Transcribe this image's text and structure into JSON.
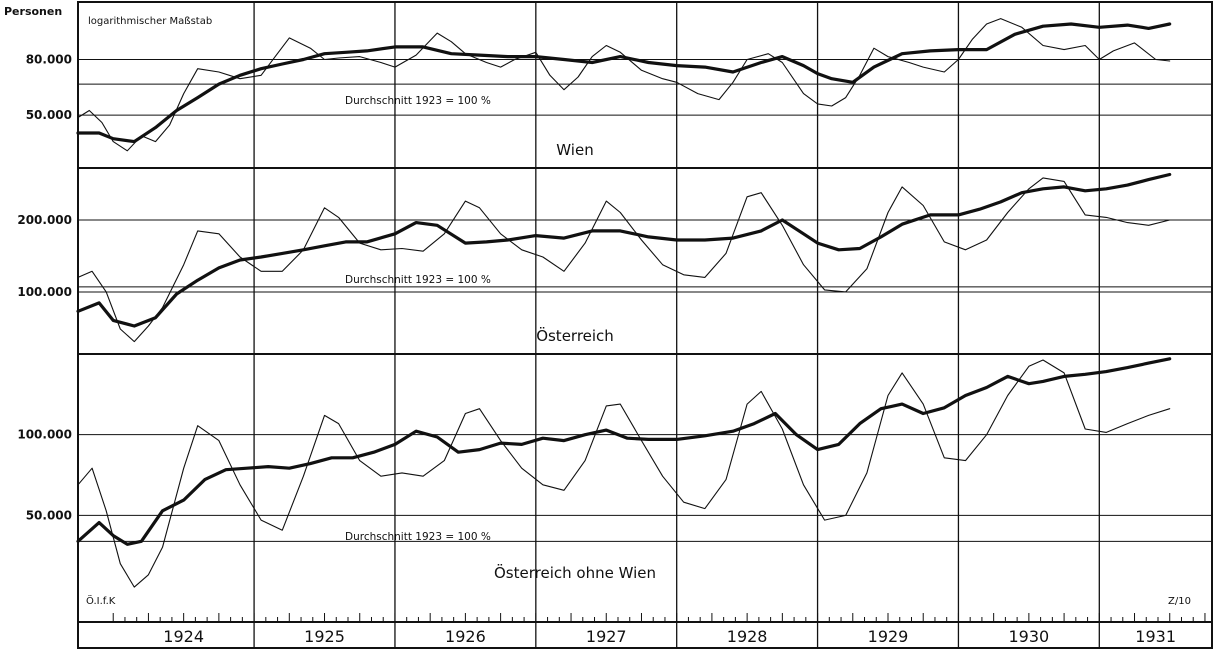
{
  "header": {
    "unit_label": "Personen",
    "scale_note": "logarithmischer Maßstab"
  },
  "footer": {
    "left_code": "Ö.I.f.K",
    "right_code": "Z/10"
  },
  "chart_data": [
    {
      "type": "line",
      "title": "Wien",
      "scale": "log",
      "reference_label": "Durchschnitt  1923 = 100 %",
      "ytick_labels": [
        "80.000",
        "50.000"
      ],
      "ytick_values": [
        80000,
        50000
      ],
      "ylim": [
        32000,
        130000
      ],
      "x_unit": "year (fractional)",
      "xlim": [
        1923.75,
        1931.8
      ],
      "reference_value": 65000,
      "series": [
        {
          "style": "thin",
          "x": [
            1923.75,
            1923.83,
            1923.92,
            1924.0,
            1924.1,
            1924.2,
            1924.3,
            1924.4,
            1924.5,
            1924.6,
            1924.75,
            1924.9,
            1925.05,
            1925.15,
            1925.25,
            1925.4,
            1925.5,
            1925.6,
            1925.75,
            1925.9,
            1926.0,
            1926.15,
            1926.3,
            1926.4,
            1926.5,
            1926.65,
            1926.75,
            1926.85,
            1927.0,
            1927.1,
            1927.2,
            1927.3,
            1927.4,
            1927.5,
            1927.6,
            1927.75,
            1927.9,
            1928.0,
            1928.15,
            1928.3,
            1928.4,
            1928.5,
            1928.65,
            1928.75,
            1928.9,
            1929.0,
            1929.1,
            1929.2,
            1929.3,
            1929.4,
            1929.5,
            1929.65,
            1929.75,
            1929.9,
            1930.0,
            1930.1,
            1930.2,
            1930.3,
            1930.45,
            1930.6,
            1930.75,
            1930.9,
            1931.0,
            1931.1,
            1931.25,
            1931.4,
            1931.5
          ],
          "y": [
            49000,
            52000,
            47000,
            40000,
            37000,
            42000,
            40000,
            46000,
            60000,
            74000,
            72000,
            68000,
            70000,
            82000,
            96000,
            88000,
            80000,
            81000,
            82000,
            78000,
            75000,
            83000,
            100000,
            93000,
            84000,
            78000,
            75000,
            80000,
            85000,
            70000,
            62000,
            69000,
            82000,
            90000,
            85000,
            73000,
            68000,
            66000,
            60000,
            57000,
            66000,
            80000,
            84000,
            78000,
            60000,
            55000,
            54000,
            58000,
            70000,
            88000,
            82000,
            78000,
            75000,
            72000,
            80000,
            95000,
            108000,
            113000,
            105000,
            90000,
            87000,
            90000,
            80000,
            86000,
            92000,
            80000,
            79000
          ]
        },
        {
          "style": "thick",
          "x": [
            1923.75,
            1923.9,
            1924.0,
            1924.15,
            1924.3,
            1924.45,
            1924.6,
            1924.75,
            1924.9,
            1925.05,
            1925.2,
            1925.35,
            1925.5,
            1925.65,
            1925.8,
            1926.0,
            1926.2,
            1926.4,
            1926.6,
            1926.8,
            1927.0,
            1927.2,
            1927.4,
            1927.6,
            1927.8,
            1928.0,
            1928.2,
            1928.4,
            1928.6,
            1928.75,
            1928.9,
            1929.0,
            1929.1,
            1929.25,
            1929.4,
            1929.6,
            1929.8,
            1930.0,
            1930.2,
            1930.4,
            1930.6,
            1930.8,
            1931.0,
            1931.2,
            1931.35,
            1931.5
          ],
          "y": [
            43000,
            43000,
            41000,
            40000,
            45000,
            52000,
            58000,
            65000,
            70000,
            74000,
            77000,
            80000,
            84000,
            85000,
            86000,
            89000,
            89000,
            84000,
            83000,
            82000,
            82000,
            80000,
            78000,
            82000,
            78000,
            76000,
            75000,
            72000,
            78000,
            82000,
            76000,
            71000,
            68000,
            66000,
            75000,
            84000,
            86000,
            87000,
            87000,
            99000,
            106000,
            108000,
            105000,
            107000,
            104000,
            108000
          ]
        }
      ]
    },
    {
      "type": "line",
      "title": "Österreich",
      "scale": "log",
      "reference_label": "Durchschnitt  1923 = 100 %",
      "ytick_labels": [
        "200.000",
        "100.000"
      ],
      "ytick_values": [
        200000,
        100000
      ],
      "ylim": [
        55000,
        330000
      ],
      "x_unit": "year (fractional)",
      "xlim": [
        1923.75,
        1931.8
      ],
      "reference_value": 105000,
      "series": [
        {
          "style": "thin",
          "x": [
            1923.75,
            1923.85,
            1923.95,
            1924.05,
            1924.15,
            1924.25,
            1924.35,
            1924.5,
            1924.6,
            1924.75,
            1924.9,
            1925.05,
            1925.2,
            1925.35,
            1925.5,
            1925.6,
            1925.75,
            1925.9,
            1926.05,
            1926.2,
            1926.35,
            1926.5,
            1926.6,
            1926.75,
            1926.9,
            1927.05,
            1927.2,
            1927.35,
            1927.5,
            1927.6,
            1927.75,
            1927.9,
            1928.05,
            1928.2,
            1928.35,
            1928.5,
            1928.6,
            1928.75,
            1928.9,
            1929.05,
            1929.2,
            1929.35,
            1929.5,
            1929.6,
            1929.75,
            1929.9,
            1930.05,
            1930.2,
            1930.35,
            1930.5,
            1930.6,
            1930.75,
            1930.9,
            1931.05,
            1931.2,
            1931.35,
            1931.5
          ],
          "y": [
            115000,
            122000,
            100000,
            70000,
            62000,
            72000,
            86000,
            130000,
            180000,
            175000,
            140000,
            122000,
            122000,
            150000,
            225000,
            205000,
            160000,
            150000,
            152000,
            148000,
            175000,
            240000,
            225000,
            175000,
            150000,
            140000,
            122000,
            160000,
            240000,
            215000,
            165000,
            130000,
            118000,
            115000,
            145000,
            250000,
            260000,
            190000,
            130000,
            102000,
            100000,
            125000,
            215000,
            275000,
            230000,
            162000,
            150000,
            165000,
            215000,
            270000,
            300000,
            290000,
            210000,
            205000,
            195000,
            190000,
            200000
          ]
        },
        {
          "style": "thick",
          "x": [
            1923.75,
            1923.9,
            1924.0,
            1924.15,
            1924.3,
            1924.45,
            1924.6,
            1924.75,
            1924.9,
            1925.05,
            1925.2,
            1925.35,
            1925.5,
            1925.65,
            1925.8,
            1926.0,
            1926.15,
            1926.3,
            1926.5,
            1926.65,
            1926.8,
            1927.0,
            1927.2,
            1927.4,
            1927.6,
            1927.8,
            1928.0,
            1928.2,
            1928.4,
            1928.6,
            1928.75,
            1928.9,
            1929.0,
            1929.15,
            1929.3,
            1929.45,
            1929.6,
            1929.8,
            1930.0,
            1930.15,
            1930.3,
            1930.45,
            1930.6,
            1930.75,
            1930.9,
            1931.05,
            1931.2,
            1931.35,
            1931.5
          ],
          "y": [
            83000,
            90000,
            76000,
            72000,
            78000,
            98000,
            112000,
            126000,
            136000,
            140000,
            145000,
            150000,
            156000,
            162000,
            162000,
            175000,
            195000,
            190000,
            160000,
            162000,
            165000,
            172000,
            168000,
            180000,
            180000,
            170000,
            165000,
            165000,
            168000,
            180000,
            200000,
            175000,
            160000,
            150000,
            152000,
            170000,
            192000,
            210000,
            210000,
            222000,
            238000,
            260000,
            270000,
            275000,
            265000,
            270000,
            280000,
            295000,
            310000
          ]
        }
      ]
    },
    {
      "type": "line",
      "title": "Österreich ohne Wien",
      "scale": "log",
      "reference_label": "Durchschnitt  1923 = 100 %",
      "ytick_labels": [
        "100.000",
        "50.000"
      ],
      "ytick_values": [
        100000,
        50000
      ],
      "ylim": [
        20000,
        200000
      ],
      "x_unit": "year (fractional)",
      "xlim": [
        1923.75,
        1931.8
      ],
      "reference_value": 40000,
      "series": [
        {
          "style": "thin",
          "x": [
            1923.75,
            1923.85,
            1923.95,
            1924.05,
            1924.15,
            1924.25,
            1924.35,
            1924.5,
            1924.6,
            1924.75,
            1924.9,
            1925.05,
            1925.2,
            1925.35,
            1925.5,
            1925.6,
            1925.75,
            1925.9,
            1926.05,
            1926.2,
            1926.35,
            1926.5,
            1926.6,
            1926.75,
            1926.9,
            1927.05,
            1927.2,
            1927.35,
            1927.5,
            1927.6,
            1927.75,
            1927.9,
            1928.05,
            1928.2,
            1928.35,
            1928.5,
            1928.6,
            1928.75,
            1928.9,
            1929.05,
            1929.2,
            1929.35,
            1929.5,
            1929.6,
            1929.75,
            1929.9,
            1930.05,
            1930.2,
            1930.35,
            1930.5,
            1930.6,
            1930.75,
            1930.9,
            1931.05,
            1931.2,
            1931.35,
            1931.5
          ],
          "y": [
            65000,
            75000,
            52000,
            33000,
            27000,
            30000,
            38000,
            75000,
            108000,
            95000,
            65000,
            48000,
            44000,
            70000,
            118000,
            110000,
            80000,
            70000,
            72000,
            70000,
            80000,
            120000,
            125000,
            95000,
            75000,
            65000,
            62000,
            80000,
            128000,
            130000,
            95000,
            70000,
            56000,
            53000,
            68000,
            130000,
            145000,
            105000,
            65000,
            48000,
            50000,
            72000,
            140000,
            170000,
            130000,
            82000,
            80000,
            100000,
            140000,
            180000,
            190000,
            170000,
            105000,
            102000,
            110000,
            118000,
            125000
          ]
        },
        {
          "style": "thick",
          "x": [
            1923.75,
            1923.9,
            1924.0,
            1924.1,
            1924.2,
            1924.35,
            1924.5,
            1924.65,
            1924.8,
            1924.95,
            1925.1,
            1925.25,
            1925.4,
            1925.55,
            1925.7,
            1925.85,
            1926.0,
            1926.15,
            1926.3,
            1926.45,
            1926.6,
            1926.75,
            1926.9,
            1927.05,
            1927.2,
            1927.35,
            1927.5,
            1927.65,
            1927.8,
            1928.0,
            1928.2,
            1928.4,
            1928.55,
            1928.7,
            1928.85,
            1929.0,
            1929.15,
            1929.3,
            1929.45,
            1929.6,
            1929.75,
            1929.9,
            1930.05,
            1930.2,
            1930.35,
            1930.5,
            1930.6,
            1930.75,
            1930.9,
            1931.05,
            1931.2,
            1931.35,
            1931.5
          ],
          "y": [
            40000,
            47000,
            42000,
            39000,
            40000,
            52000,
            57000,
            68000,
            74000,
            75000,
            76000,
            75000,
            78000,
            82000,
            82000,
            86000,
            92000,
            103000,
            98000,
            86000,
            88000,
            93000,
            92000,
            97000,
            95000,
            100000,
            104000,
            97000,
            96000,
            96000,
            99000,
            103000,
            110000,
            120000,
            100000,
            88000,
            92000,
            110000,
            125000,
            130000,
            120000,
            126000,
            140000,
            150000,
            165000,
            155000,
            158000,
            165000,
            168000,
            172000,
            178000,
            185000,
            192000
          ]
        }
      ]
    }
  ],
  "x_axis": {
    "years": [
      "1924",
      "1925",
      "1926",
      "1927",
      "1928",
      "1929",
      "1930",
      "1931"
    ],
    "year_values": [
      1924,
      1925,
      1926,
      1927,
      1928,
      1929,
      1930,
      1931
    ]
  }
}
